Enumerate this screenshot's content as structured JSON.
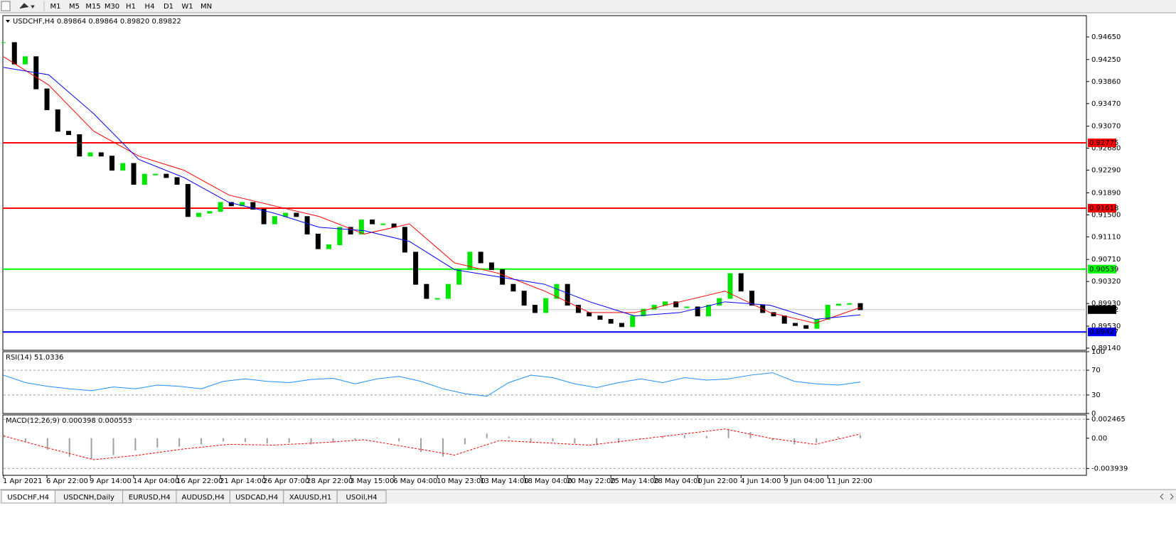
{
  "toolbar": {
    "timeframes": [
      "M1",
      "M5",
      "M15",
      "M30",
      "H1",
      "H4",
      "D1",
      "W1",
      "MN"
    ]
  },
  "chart_data": [
    {
      "type": "candlestick",
      "title": "USDCHF,H4  0.89864 0.89864 0.89820 0.89822",
      "categories": [
        "1 Apr 2021",
        null,
        null,
        null,
        "6 Apr 22:00",
        null,
        null,
        null,
        "9 Apr 14:00",
        null,
        null,
        null,
        "14 Apr 04:00",
        null,
        null,
        null,
        "16 Apr 22:00",
        null,
        null,
        null,
        "21 Apr 14:00",
        null,
        null,
        null,
        "26 Apr 07:00",
        null,
        null,
        null,
        "28 Apr 22:00",
        null,
        null,
        null,
        "3 May 15:00",
        null,
        null,
        null,
        "6 May 04:00",
        null,
        null,
        null,
        "10 May 23:00",
        null,
        null,
        null,
        "13 May 14:00",
        null,
        null,
        null,
        "18 May 04:00",
        null,
        null,
        null,
        "20 May 22:00",
        null,
        null,
        null,
        "25 May 14:00",
        null,
        null,
        null,
        "28 May 04:00",
        null,
        null,
        null,
        "1 Jun 22:00",
        null,
        null,
        null,
        "4 Jun 14:00",
        null,
        null,
        null,
        "9 Jun 04:00",
        null,
        null,
        null,
        "11 Jun 22:00",
        null,
        null,
        null
      ],
      "values": [
        0.9455,
        0.9417,
        0.943,
        0.9373,
        0.9336,
        0.9298,
        0.9292,
        0.9254,
        0.926,
        0.9254,
        0.9229,
        0.9241,
        0.9204,
        0.9222,
        0.9222,
        0.9216,
        0.9204,
        0.9147,
        0.9153,
        0.9156,
        0.9172,
        0.9166,
        0.9172,
        0.916,
        0.9134,
        0.9147,
        0.9153,
        0.9147,
        0.9116,
        0.909,
        0.9097,
        0.9128,
        0.9116,
        0.9141,
        0.9134,
        0.9134,
        0.9128,
        0.9084,
        0.9027,
        0.9002,
        0.9002,
        0.9027,
        0.9053,
        0.9084,
        0.9065,
        0.9053,
        0.9027,
        0.9015,
        0.899,
        0.8977,
        0.9002,
        0.9027,
        0.899,
        0.8977,
        0.8971,
        0.8965,
        0.8958,
        0.8952,
        0.8971,
        0.8983,
        0.899,
        0.8996,
        0.8987,
        0.8987,
        0.8971,
        0.899,
        0.9002,
        0.9046,
        0.9015,
        0.899,
        0.8977,
        0.8971,
        0.8958,
        0.8954,
        0.8949,
        0.8965,
        0.899,
        0.8992,
        0.8993,
        0.8982
      ],
      "up_color": "#00e600",
      "down_color": "#000000",
      "ma_lines": [
        {
          "color": "#ff0000",
          "values": [
            0.943,
            0.938,
            0.9298,
            0.9254,
            0.9229,
            0.9185,
            0.9166,
            0.9147,
            0.9116,
            0.9134,
            0.9065,
            0.9046,
            0.9015,
            0.8977,
            0.8977,
            0.8996,
            0.9015,
            0.8977,
            0.8958,
            0.8986
          ]
        },
        {
          "color": "#0000ff",
          "values": [
            0.9411,
            0.9398,
            0.9329,
            0.9248,
            0.9216,
            0.9172,
            0.9153,
            0.9128,
            0.9122,
            0.9103,
            0.9053,
            0.904,
            0.9027,
            0.8996,
            0.8971,
            0.8977,
            0.8996,
            0.899,
            0.8965,
            0.8973
          ]
        }
      ],
      "ylim": [
        0.89115,
        0.95027
      ],
      "yticks": [
        {
          "value": 0.9465,
          "label": "0.94650"
        },
        {
          "value": 0.9425,
          "label": "0.94250"
        },
        {
          "value": 0.9386,
          "label": "0.93860"
        },
        {
          "value": 0.9347,
          "label": "0.93470"
        },
        {
          "value": 0.9307,
          "label": "0.93070"
        },
        {
          "value": 0.9268,
          "label": "0.92680"
        },
        {
          "value": 0.9229,
          "label": "0.92290"
        },
        {
          "value": 0.9189,
          "label": "0.91890"
        },
        {
          "value": 0.915,
          "label": "0.91500"
        },
        {
          "value": 0.9111,
          "label": "0.91110"
        },
        {
          "value": 0.9071,
          "label": "0.90710"
        },
        {
          "value": 0.9032,
          "label": "0.90320"
        },
        {
          "value": 0.8993,
          "label": "0.89930"
        },
        {
          "value": 0.8953,
          "label": "0.89530"
        },
        {
          "value": 0.8914,
          "label": "0.89140"
        }
      ],
      "levels": [
        {
          "value": 0.92775,
          "label": "0.92775",
          "color": "#ff0000"
        },
        {
          "value": 0.91618,
          "label": "0.91618",
          "color": "#ff0000"
        },
        {
          "value": 0.90539,
          "label": "0.90539",
          "color": "#00ff00"
        },
        {
          "value": 0.89427,
          "label": "0.89427",
          "color": "#0000ff"
        }
      ],
      "bid": {
        "value": 0.89822,
        "label": "0.89822",
        "color": "#c0c0c0"
      }
    },
    {
      "type": "line",
      "title": "RSI(14) 51.0336",
      "color": "#1e90ff",
      "values": [
        62,
        50,
        44,
        40,
        37,
        43,
        40,
        46,
        44,
        40,
        52,
        56,
        52,
        50,
        55,
        57,
        48,
        56,
        60,
        52,
        40,
        32,
        28,
        50,
        62,
        58,
        48,
        42,
        50,
        56,
        50,
        58,
        54,
        56,
        62,
        66,
        52,
        48,
        46,
        51
      ],
      "ylim": [
        0,
        100
      ],
      "yticks": [
        100,
        70,
        30,
        0
      ]
    },
    {
      "type": "macd",
      "title": "MACD(12,26,9) 0.000398 0.000553",
      "color": "#a0a0a0",
      "signal_color": "#ff0000",
      "values": [
        0.0005,
        -0.0004,
        -0.0015,
        -0.0024,
        -0.0027,
        -0.0022,
        -0.0016,
        -0.0012,
        -0.0011,
        -0.0008,
        -0.0004,
        -0.0005,
        -0.0007,
        -0.0006,
        -0.0008,
        -0.0006,
        -0.0002,
        0.0001,
        -0.0004,
        -0.0018,
        -0.0024,
        -0.0008,
        0.0006,
        0.0002,
        -0.0006,
        -0.0004,
        -0.0007,
        -0.0009,
        -0.0006,
        -0.0001,
        0.0003,
        0.0004,
        0.0003,
        0.0012,
        0.0008,
        -0.0003,
        -0.0008,
        -0.0006,
        0.0002,
        0.000398
      ],
      "signal": [
        0.0003,
        -0.0013,
        -0.0028,
        -0.0022,
        -0.0014,
        -0.0008,
        -0.0009,
        -0.0006,
        -0.0002,
        -0.0012,
        -0.0022,
        -0.0003,
        -0.0006,
        -0.0009,
        -0.0002,
        0.0005,
        0.0012,
        0.0,
        -0.0008,
        0.000553
      ],
      "ylim": [
        -0.004835,
        0.003034
      ],
      "yticks": [
        0.002465,
        {
          "value": 0,
          "label": "0.00"
        },
        -0.003939
      ]
    }
  ],
  "tabs": [
    "USDCHF,H4",
    "USDCNH,Daily",
    "EURUSD,H4",
    "AUDUSD,H4",
    "USDCAD,H4",
    "XAUUSD,H1",
    "USOil,H4"
  ]
}
